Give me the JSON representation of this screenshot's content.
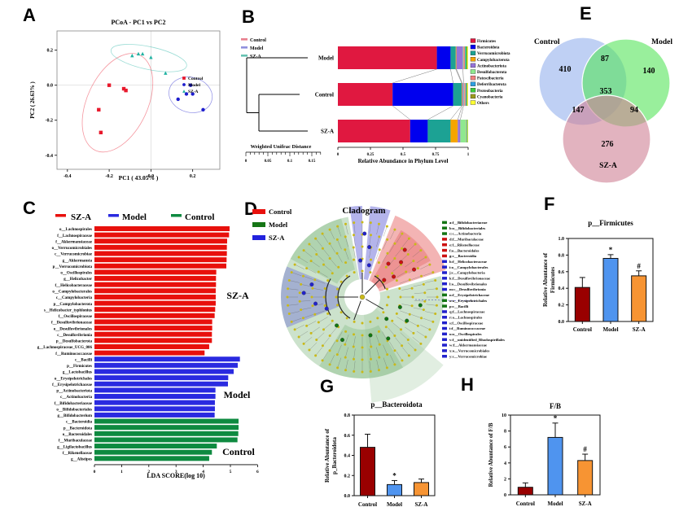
{
  "figure": {
    "panel_labels": {
      "A": "A",
      "B": "B",
      "C": "C",
      "D": "D",
      "E": "E",
      "F": "F",
      "G": "G",
      "H": "H"
    }
  },
  "chart_data": [
    {
      "panel": "A",
      "type": "scatter",
      "title": "PCoA - PC1 vs PC2",
      "xlabel": "PC1 ( 43.05% )",
      "ylabel": "PC2 ( 26.63% )",
      "xlim": [
        -0.45,
        0.33
      ],
      "ylim": [
        -0.48,
        0.31
      ],
      "xticks": [
        "-0.4",
        "-0.2",
        "0.0",
        "0.2"
      ],
      "yticks": [
        "-0.4",
        "-0.2",
        "0.0",
        "0.2"
      ],
      "series": [
        {
          "name": "Control",
          "color": "#e8192c",
          "marker": "square",
          "points": [
            [
              -0.2,
              0.0
            ],
            [
              -0.13,
              -0.02
            ],
            [
              -0.12,
              -0.03
            ],
            [
              -0.25,
              -0.14
            ],
            [
              -0.24,
              -0.27
            ]
          ],
          "ellipse": {
            "cx": -0.16,
            "cy": -0.1,
            "rx": 0.145,
            "ry": 0.3,
            "rot": 25
          }
        },
        {
          "name": "Model",
          "color": "#1d1dcd",
          "marker": "circle",
          "points": [
            [
              0.19,
              0.0
            ],
            [
              0.17,
              -0.05
            ],
            [
              0.2,
              -0.05
            ],
            [
              0.13,
              -0.08
            ],
            [
              0.25,
              -0.14
            ]
          ],
          "ellipse": {
            "cx": 0.19,
            "cy": -0.055,
            "rx": 0.105,
            "ry": 0.1,
            "rot": 15
          }
        },
        {
          "name": "SZ-A",
          "color": "#20b2a2",
          "marker": "triangle",
          "points": [
            [
              -0.09,
              0.17
            ],
            [
              -0.06,
              0.18
            ],
            [
              -0.04,
              0.18
            ],
            [
              0.0,
              0.16
            ],
            [
              0.07,
              0.07
            ]
          ],
          "ellipse": {
            "cx": -0.01,
            "cy": 0.155,
            "rx": 0.185,
            "ry": 0.065,
            "rot": 12
          }
        }
      ]
    },
    {
      "panel": "B",
      "type": "stacked-bar",
      "cluster_legend": [
        {
          "label": "Control",
          "color": "#e87f8e"
        },
        {
          "label": "Model",
          "color": "#9090dd"
        },
        {
          "label": "SZ-A",
          "color": "#66c2b2"
        }
      ],
      "scale_label": "Weighted Unifrac Distance",
      "scale_ticks": [
        "0",
        "0.05",
        "0.1",
        "0.15"
      ],
      "xlabel": "Relative Abundance in Phylum Level",
      "xticks": [
        "0",
        "0.25",
        "0.5",
        "0.75",
        "1"
      ],
      "rows": [
        "Model",
        "Control",
        "SZ-A"
      ],
      "phyla": [
        {
          "name": "Firmicutes",
          "color": "#e01840"
        },
        {
          "name": "Bacteroidota",
          "color": "#0000ee"
        },
        {
          "name": "Verrucomicrobiota",
          "color": "#1ca294"
        },
        {
          "name": "Campylobacterota",
          "color": "#f5a500"
        },
        {
          "name": "Actinobacteriota",
          "color": "#9674d8"
        },
        {
          "name": "Desulfobacterota",
          "color": "#8fe88f"
        },
        {
          "name": "Patescibacteria",
          "color": "#ef8080"
        },
        {
          "name": "Deferribacterota",
          "color": "#2f9fe0"
        },
        {
          "name": "Proteobacteria",
          "color": "#3ecc3e"
        },
        {
          "name": "Cyanobacteria",
          "color": "#9a9a20"
        },
        {
          "name": "Others",
          "color": "#ffff33"
        }
      ],
      "values": {
        "Model": [
          0.76,
          0.105,
          0.04,
          0.005,
          0.05,
          0.005,
          0.01,
          0.005,
          0.01,
          0.005,
          0.005
        ],
        "Control": [
          0.42,
          0.465,
          0.065,
          0.005,
          0.01,
          0.005,
          0.01,
          0.005,
          0.005,
          0.005,
          0.005
        ],
        "SZ-A": [
          0.555,
          0.135,
          0.175,
          0.055,
          0.02,
          0.045,
          0.003,
          0.002,
          0.005,
          0.002,
          0.003
        ]
      }
    },
    {
      "panel": "C",
      "type": "bar-horizontal",
      "xlabel": "LDA SCORE(log 10)",
      "xticks": [
        "0",
        "1",
        "2",
        "3",
        "4",
        "5",
        "6"
      ],
      "legend": [
        {
          "label": "SZ-A",
          "color": "#e8100c"
        },
        {
          "label": "Model",
          "color": "#2a2ae0"
        },
        {
          "label": "Control",
          "color": "#0e8a40"
        }
      ],
      "groups": [
        {
          "name": "SZ-A",
          "color": "#e8100c",
          "label_color": "#f03070",
          "taxa": [
            [
              "o__Lachnospirales",
              4.97
            ],
            [
              "f__Lachnospiraceae",
              4.95
            ],
            [
              "f__Akkermansiaceae",
              4.88
            ],
            [
              "o__Verrucomicrobiales",
              4.87
            ],
            [
              "c__Verrucomicrobiae",
              4.87
            ],
            [
              "g__Akkermansia",
              4.86
            ],
            [
              "p__Verrucomicrobiota",
              4.85
            ],
            [
              "o__Oscillospirales",
              4.48
            ],
            [
              "g__Helicobacter",
              4.47
            ],
            [
              "f__Helicobacteraceae",
              4.47
            ],
            [
              "o__Campylobacterales",
              4.46
            ],
            [
              "c__Campylobacteria",
              4.46
            ],
            [
              "p__Campylobacterota",
              4.46
            ],
            [
              "s__Helicobacter_typhlonius",
              4.44
            ],
            [
              "f__Oscillospiraceae",
              4.42
            ],
            [
              "f__Desulfovibrionaceae",
              4.33
            ],
            [
              "o__Desulfovibrionales",
              4.33
            ],
            [
              "c__Desulfovibrionia",
              4.32
            ],
            [
              "p__Desulfobacterota",
              4.32
            ],
            [
              "g__Lachnospiraceae_UCG_006",
              4.22
            ],
            [
              "f__Ruminococcaceae",
              4.05
            ]
          ]
        },
        {
          "name": "Model",
          "color": "#2a2ae0",
          "label_color": "#3a3ae8",
          "taxa": [
            [
              "c__Bacilli",
              5.35
            ],
            [
              "p__Firmicutes",
              5.27
            ],
            [
              "g__Lactobacillus",
              5.12
            ],
            [
              "o__Erysipelotrichales",
              4.92
            ],
            [
              "f__Erysipelotrichaceae",
              4.91
            ],
            [
              "p__Actinobacteriota",
              4.45
            ],
            [
              "c__Actinobacteria",
              4.45
            ],
            [
              "f__Bifidobacteriaceae",
              4.43
            ],
            [
              "o__Bifidobacteriales",
              4.43
            ],
            [
              "g__Bifidobacterium",
              4.42
            ]
          ]
        },
        {
          "name": "Control",
          "color": "#0e8a40",
          "label_color": "#0e8a40",
          "taxa": [
            [
              "c__Bacteroidia",
              5.3
            ],
            [
              "p__Bacteroidota",
              5.3
            ],
            [
              "o__Bacteroidales",
              5.29
            ],
            [
              "f__Muribaculaceae",
              5.26
            ],
            [
              "g__Ligilactobacillus",
              4.5
            ],
            [
              "f__Rikenellaceae",
              4.32
            ],
            [
              "g__Alistipes",
              4.22
            ]
          ]
        }
      ]
    },
    {
      "panel": "D",
      "type": "cladogram",
      "title": "Cladogram",
      "legend": [
        {
          "label": "Control",
          "color": "#e8100c",
          "text_color": "#e8100c"
        },
        {
          "label": "Model",
          "color": "#157515",
          "text_color": "#157515"
        },
        {
          "label": "SZ-A",
          "color": "#2222dd",
          "text_color": "#2222dd"
        }
      ],
      "taxa_legend": [
        {
          "label": "a:f__Bifidobacteriaceae",
          "color": "#157515"
        },
        {
          "label": "b:o__Bifidobacteriales",
          "color": "#157515"
        },
        {
          "label": "c:c__Actinobacteria",
          "color": "#157515"
        },
        {
          "label": "d:f__Muribaculaceae",
          "color": "#cc1111"
        },
        {
          "label": "e:f__Rikenellaceae",
          "color": "#cc1111"
        },
        {
          "label": "f:o__Bacteroidales",
          "color": "#cc1111"
        },
        {
          "label": "g:c__Bacteroidia",
          "color": "#cc1111"
        },
        {
          "label": "h:f__Helicobacteraceae",
          "color": "#2222cc"
        },
        {
          "label": "i:o__Campylobacterales",
          "color": "#2222cc"
        },
        {
          "label": "j:c__Campylobacteria",
          "color": "#2222cc"
        },
        {
          "label": "k:f__Desulfovibrionaceae",
          "color": "#2222cc"
        },
        {
          "label": "l:o__Desulfovibrionales",
          "color": "#2222cc"
        },
        {
          "label": "m:c__Desulfovibrionia",
          "color": "#2222cc"
        },
        {
          "label": "n:f__Erysipelotrichaceae",
          "color": "#157515"
        },
        {
          "label": "o:o__Erysipelotrichales",
          "color": "#157515"
        },
        {
          "label": "p:c__Bacilli",
          "color": "#157515"
        },
        {
          "label": "q:f__Lachnospiraceae",
          "color": "#2222cc"
        },
        {
          "label": "r:o__Lachnospirales",
          "color": "#2222cc"
        },
        {
          "label": "s:f__Oscillospiraceae",
          "color": "#2222cc"
        },
        {
          "label": "t:f__Ruminococcaceae",
          "color": "#2222cc"
        },
        {
          "label": "u:o__Oscillospirales",
          "color": "#2222cc"
        },
        {
          "label": "v:f__unidentified_Rhodospirillales",
          "color": "#2222cc"
        },
        {
          "label": "w:f__Akkermansiaceae",
          "color": "#2222cc"
        },
        {
          "label": "x:o__Verrucomicrobiales",
          "color": "#2222cc"
        },
        {
          "label": "y:c__Verrucomicrobiae",
          "color": "#2222cc"
        }
      ]
    },
    {
      "panel": "E",
      "type": "venn",
      "sets": [
        {
          "label": "Control",
          "label_color": "#7aa0e8",
          "circle_color": "#a9c0f0",
          "unique": 410
        },
        {
          "label": "Model",
          "label_color": "#3cd23c",
          "circle_color": "#55e55a",
          "unique": 140
        },
        {
          "label": "SZ-A",
          "label_color": "#c43a5a",
          "circle_color": "#cf8095",
          "unique": 276
        }
      ],
      "overlaps": {
        "control_model": 87,
        "control_sza": 147,
        "model_sza": 94,
        "all": 353
      }
    },
    {
      "panel": "F",
      "type": "bar",
      "title": "p__Firmicutes",
      "ylabel_lines": [
        "Relative Abuntance of",
        "Firmicutes"
      ],
      "categories": [
        "Control",
        "Model",
        "SZ-A"
      ],
      "values": [
        0.41,
        0.76,
        0.55
      ],
      "errors": [
        0.12,
        0.045,
        0.06
      ],
      "annotations": [
        "",
        "*",
        "#"
      ],
      "colors": [
        "#990000",
        "#4f94ef",
        "#f79433"
      ],
      "ytick_labels": [
        "0.0",
        "0.2",
        "0.4",
        "0.6",
        "0.8",
        "1.0"
      ],
      "ylim": [
        0,
        1.0
      ]
    },
    {
      "panel": "G",
      "type": "bar",
      "title": "p__Bacteroidota",
      "ylabel_lines": [
        "Relative Abuntance of",
        "p_Bacteroidota"
      ],
      "categories": [
        "Control",
        "Model",
        "SZ-A"
      ],
      "values": [
        0.48,
        0.11,
        0.13
      ],
      "errors": [
        0.13,
        0.04,
        0.035
      ],
      "annotations": [
        "",
        "*",
        ""
      ],
      "colors": [
        "#990000",
        "#4f94ef",
        "#f79433"
      ],
      "ytick_labels": [
        "0.0",
        "0.2",
        "0.4",
        "0.6",
        "0.8"
      ],
      "ylim": [
        0,
        0.8
      ]
    },
    {
      "panel": "H",
      "type": "bar",
      "title": "F/B",
      "ylabel_lines": [
        "Relative Abuntance of  F/B"
      ],
      "categories": [
        "Control",
        "Model",
        "SZ-A"
      ],
      "values": [
        0.95,
        7.2,
        4.3
      ],
      "errors": [
        0.55,
        1.8,
        0.8
      ],
      "annotations": [
        "",
        "*",
        "#"
      ],
      "colors": [
        "#990000",
        "#4f94ef",
        "#f79433"
      ],
      "ytick_labels": [
        "0",
        "2",
        "4",
        "6",
        "8",
        "10"
      ],
      "ylim": [
        0,
        10
      ]
    }
  ]
}
